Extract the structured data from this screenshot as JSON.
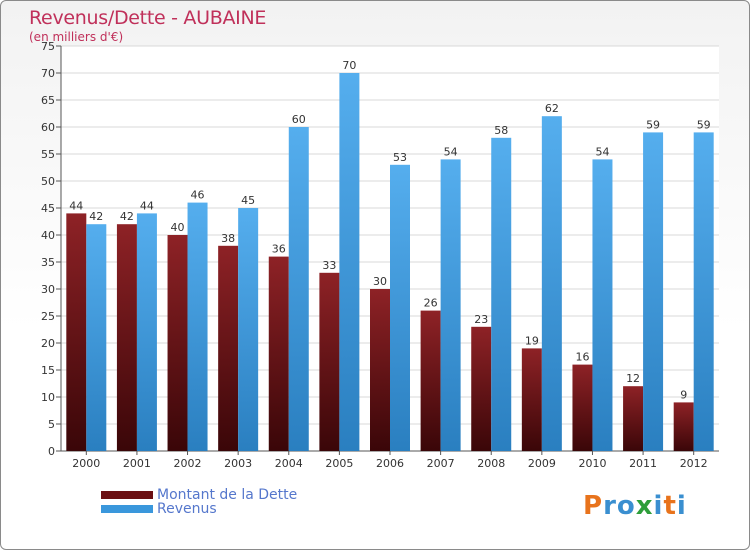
{
  "header": {
    "title": "Revenus/Dette - AUBAINE",
    "subtitle": "(en milliers d'€)"
  },
  "chart_data": {
    "type": "bar",
    "title": "Revenus/Dette - AUBAINE",
    "ylabel": "(en milliers d'€)",
    "xlabel": "",
    "ylim": [
      0,
      75
    ],
    "ytick_step": 5,
    "grid": true,
    "categories": [
      "2000",
      "2001",
      "2002",
      "2003",
      "2004",
      "2005",
      "2006",
      "2007",
      "2008",
      "2009",
      "2010",
      "2011",
      "2012"
    ],
    "series": [
      {
        "name": "Montant de la Dette",
        "color": "#7a1518",
        "values": [
          44,
          42,
          40,
          38,
          36,
          33,
          30,
          26,
          23,
          19,
          16,
          12,
          9
        ]
      },
      {
        "name": "Revenus",
        "color": "#3a97dc",
        "values": [
          42,
          44,
          46,
          45,
          60,
          70,
          53,
          54,
          58,
          62,
          54,
          59,
          59
        ]
      }
    ],
    "legend_position": "bottom-left"
  },
  "legend": {
    "items": [
      {
        "label": "Montant de la Dette",
        "color": "#6b0f12"
      },
      {
        "label": "Revenus",
        "color": "#3a97dc"
      }
    ]
  },
  "logo": {
    "letters": [
      "P",
      "r",
      "o",
      "x",
      "i",
      "t",
      "i"
    ],
    "colors": [
      "#e8731c",
      "#3a8fd0",
      "#3a8fd0",
      "#2e9e3a",
      "#3a8fd0",
      "#e8731c",
      "#3a8fd0"
    ]
  }
}
